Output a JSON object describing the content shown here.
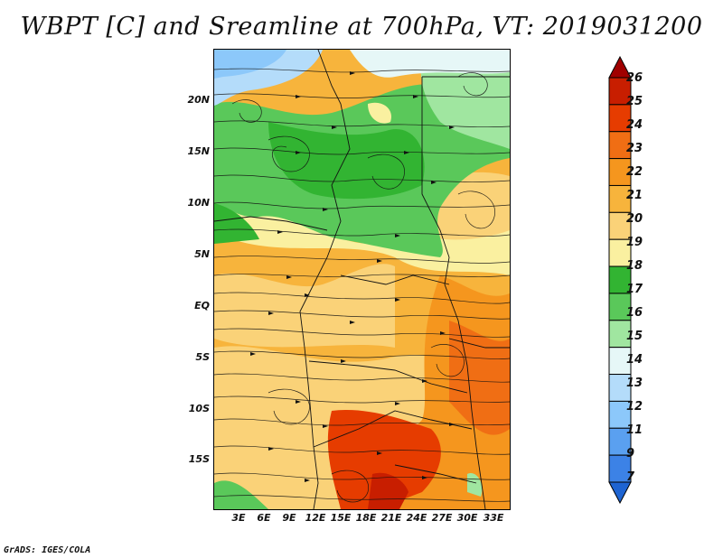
{
  "title": "WBPT [C] and Sreamline at 700hPa, VT: 2019031200",
  "credit": "GrADS: IGES/COLA",
  "map": {
    "lat_labels": [
      "20N",
      "15N",
      "10N",
      "5N",
      "EQ",
      "5S",
      "10S",
      "15S"
    ],
    "lon_labels": [
      "3E",
      "6E",
      "9E",
      "12E",
      "15E",
      "18E",
      "21E",
      "24E",
      "27E",
      "30E",
      "33E"
    ]
  },
  "colorbar": {
    "labels": [
      "26",
      "25",
      "24",
      "23",
      "22",
      "21",
      "20",
      "19",
      "18",
      "17",
      "16",
      "15",
      "14",
      "13",
      "12",
      "11",
      "9",
      "7"
    ],
    "colors": [
      "#a00000",
      "#c81e00",
      "#e63c00",
      "#f06e14",
      "#f5961e",
      "#f7b43c",
      "#fad278",
      "#faf0a0",
      "#32b432",
      "#5ac85a",
      "#a0e6a0",
      "#e6f7f7",
      "#b4dcfa",
      "#8cc8fa",
      "#5aa0f0",
      "#3c82e6",
      "#1e64d2"
    ]
  }
}
